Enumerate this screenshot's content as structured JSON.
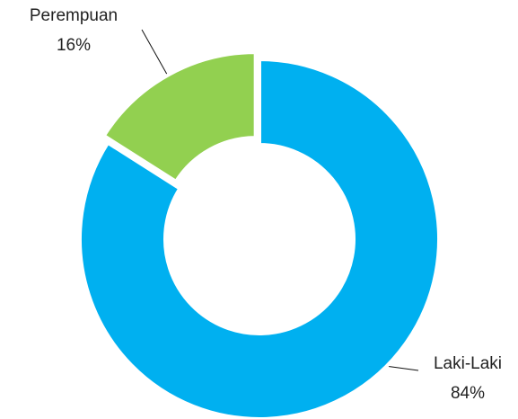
{
  "chart_data": {
    "type": "donut",
    "categories": [
      "Laki-Laki",
      "Perempuan"
    ],
    "values": [
      84,
      16
    ],
    "value_labels": [
      "84%",
      "16%"
    ],
    "colors": [
      "#00b0f0",
      "#92d050"
    ]
  }
}
